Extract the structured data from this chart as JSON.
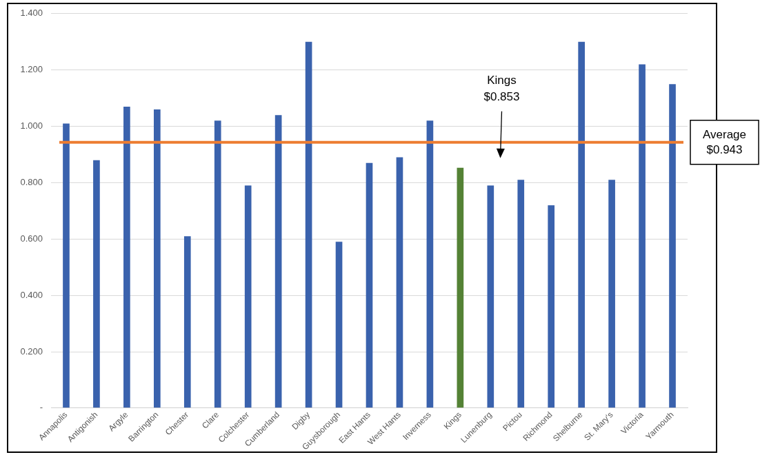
{
  "chart_data": {
    "type": "bar",
    "categories": [
      "Annapolis",
      "Antigonish",
      "Argyle",
      "Barrington",
      "Chester",
      "Clare",
      "Colchester",
      "Cumberland",
      "Digby",
      "Guysborough",
      "East Hants",
      "West Hants",
      "Inverness",
      "Kings",
      "Lunenburg",
      "Pictou",
      "Richmond",
      "Shelburne",
      "St. Mary's",
      "Victoria",
      "Yarmouth"
    ],
    "values": [
      1.01,
      0.88,
      1.07,
      1.06,
      0.61,
      1.02,
      0.79,
      1.04,
      1.3,
      0.59,
      0.87,
      0.89,
      1.02,
      0.853,
      0.79,
      0.81,
      0.72,
      1.3,
      0.81,
      1.22,
      1.15
    ],
    "colors": [
      "#3a62ad",
      "#3a62ad",
      "#3a62ad",
      "#3a62ad",
      "#3a62ad",
      "#3a62ad",
      "#3a62ad",
      "#3a62ad",
      "#3a62ad",
      "#3a62ad",
      "#3a62ad",
      "#3a62ad",
      "#3a62ad",
      "#548235",
      "#3a62ad",
      "#3a62ad",
      "#3a62ad",
      "#3a62ad",
      "#3a62ad",
      "#3a62ad",
      "#3a62ad"
    ],
    "ylim": [
      0,
      1.4
    ],
    "yticks": [
      {
        "value": 0,
        "label": "-"
      },
      {
        "value": 0.2,
        "label": "0.200"
      },
      {
        "value": 0.4,
        "label": "0.400"
      },
      {
        "value": 0.6,
        "label": "0.600"
      },
      {
        "value": 0.8,
        "label": "0.800"
      },
      {
        "value": 1.0,
        "label": "1.000"
      },
      {
        "value": 1.2,
        "label": "1.200"
      },
      {
        "value": 1.4,
        "label": "1.400"
      }
    ],
    "grid": "y",
    "legend": false,
    "ref_lines": [
      {
        "axis": "y",
        "value": 0.943,
        "label": "Average\n$0.943",
        "color": "#ed7d31"
      }
    ],
    "annotations": [
      "Kings\n$0.853"
    ]
  }
}
